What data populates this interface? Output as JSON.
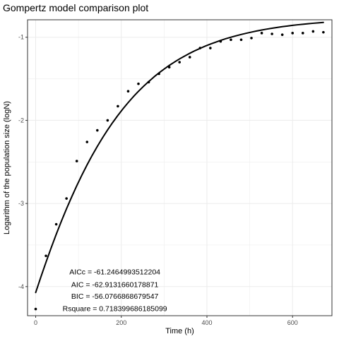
{
  "chart_data": {
    "type": "scatter",
    "title": "Gompertz model comparison plot",
    "xlabel": "Time (h)",
    "ylabel": "Logarithm of the population size (logN)",
    "xlim": [
      -19,
      692
    ],
    "ylim": [
      -4.35,
      -0.79
    ],
    "x_ticks": [
      0,
      200,
      400,
      600
    ],
    "x_tick_labels": [
      "0",
      "200",
      "400",
      "600"
    ],
    "y_ticks": [
      -4,
      -3,
      -2,
      -1
    ],
    "y_tick_labels": [
      "-4",
      "-3",
      "-2",
      "-1"
    ],
    "grid": true,
    "legend": "none",
    "colors": {
      "points": "#000000",
      "fit_line": "#000000",
      "grid": "#ebebeb",
      "panel_border": "#333333"
    },
    "series": [
      {
        "kind": "points",
        "x": [
          0,
          24,
          48,
          72,
          96,
          120,
          144,
          168,
          192,
          216,
          240,
          264,
          288,
          312,
          336,
          360,
          384,
          408,
          432,
          456,
          480,
          504,
          528,
          552,
          576,
          600,
          624,
          648,
          672
        ],
        "y": [
          -4.27,
          -3.63,
          -3.25,
          -2.94,
          -2.49,
          -2.26,
          -2.12,
          -2.0,
          -1.83,
          -1.65,
          -1.56,
          -1.54,
          -1.44,
          -1.36,
          -1.3,
          -1.24,
          -1.13,
          -1.13,
          -1.05,
          -1.03,
          -1.03,
          -1.01,
          -0.95,
          -0.96,
          -0.97,
          -0.95,
          -0.95,
          -0.93,
          -0.94
        ]
      },
      {
        "kind": "line",
        "model": "gompertz",
        "x": [
          0,
          12,
          24,
          36,
          48,
          60,
          72,
          84,
          96,
          108,
          120,
          132,
          144,
          156,
          168,
          180,
          192,
          204,
          216,
          228,
          240,
          252,
          264,
          276,
          288,
          300,
          312,
          324,
          336,
          348,
          360,
          372,
          384,
          396,
          408,
          420,
          432,
          444,
          456,
          468,
          480,
          492,
          504,
          516,
          528,
          540,
          552,
          564,
          576,
          588,
          600,
          612,
          624,
          636,
          648,
          660,
          672
        ],
        "y": [
          -4.071,
          -3.886,
          -3.708,
          -3.536,
          -3.371,
          -3.214,
          -3.064,
          -2.922,
          -2.786,
          -2.658,
          -2.536,
          -2.421,
          -2.313,
          -2.211,
          -2.115,
          -2.025,
          -1.94,
          -1.861,
          -1.786,
          -1.716,
          -1.651,
          -1.59,
          -1.533,
          -1.479,
          -1.429,
          -1.383,
          -1.339,
          -1.299,
          -1.261,
          -1.226,
          -1.193,
          -1.162,
          -1.134,
          -1.107,
          -1.083,
          -1.06,
          -1.038,
          -1.018,
          -1.0,
          -0.983,
          -0.967,
          -0.952,
          -0.938,
          -0.925,
          -0.913,
          -0.902,
          -0.892,
          -0.882,
          -0.873,
          -0.865,
          -0.857,
          -0.85,
          -0.844,
          -0.838,
          -0.832,
          -0.827,
          -0.822
        ]
      }
    ],
    "annotations": [
      {
        "text": "AICc = -61.2464993512204",
        "x": 185,
        "y": -3.82
      },
      {
        "text": "AIC = -62.9131660178871",
        "x": 185,
        "y": -3.97
      },
      {
        "text": "BIC = -56.0766868679547",
        "x": 185,
        "y": -4.11
      },
      {
        "text": "Rsquare = 0.718399686185099",
        "x": 185,
        "y": -4.26
      }
    ]
  }
}
